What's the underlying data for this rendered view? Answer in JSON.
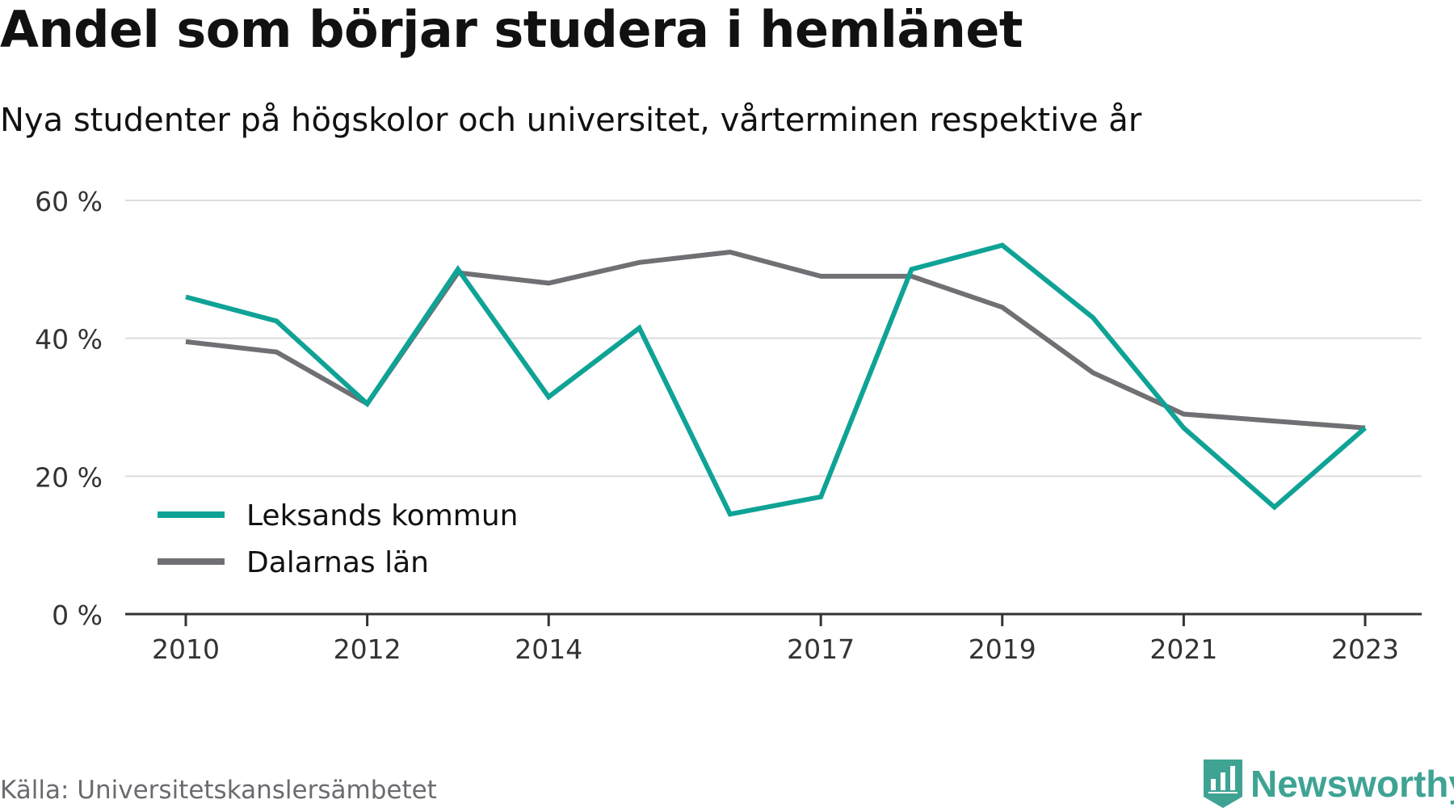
{
  "title": "Andel som börjar studera i hemlänet",
  "subtitle": "Nya studenter på högskolor och universitet, vårterminen respektive år",
  "source": "Källa: Universitetskanslersämbetet",
  "logo": {
    "text": "Newsworthy",
    "icon": "newsworthy-chart-icon",
    "color": "#3fa394"
  },
  "chart_data": {
    "type": "line",
    "x": [
      2010,
      2011,
      2012,
      2013,
      2014,
      2015,
      2016,
      2017,
      2018,
      2019,
      2020,
      2021,
      2022,
      2023
    ],
    "x_tick_labels": [
      "2010",
      "2012",
      "2014",
      "2017",
      "2019",
      "2021",
      "2023"
    ],
    "y_tick_labels": [
      "0 %",
      "20 %",
      "40 %",
      "60 %"
    ],
    "y_ticks": [
      0,
      20,
      40,
      60
    ],
    "ylim": [
      0,
      60
    ],
    "xlim": [
      2010,
      2023
    ],
    "grid": true,
    "legend_position": "bottom-left",
    "series": [
      {
        "name": "Leksands kommun",
        "color": "#0fa396",
        "values": [
          46,
          42.5,
          30.5,
          50,
          31.5,
          41.5,
          14.5,
          17,
          50,
          53.5,
          43,
          27,
          15.5,
          27
        ]
      },
      {
        "name": "Dalarnas län",
        "color": "#707074",
        "values": [
          39.5,
          38,
          30.5,
          49.5,
          48,
          51,
          52.5,
          49,
          49,
          44.5,
          35,
          29,
          28,
          27
        ]
      }
    ]
  }
}
